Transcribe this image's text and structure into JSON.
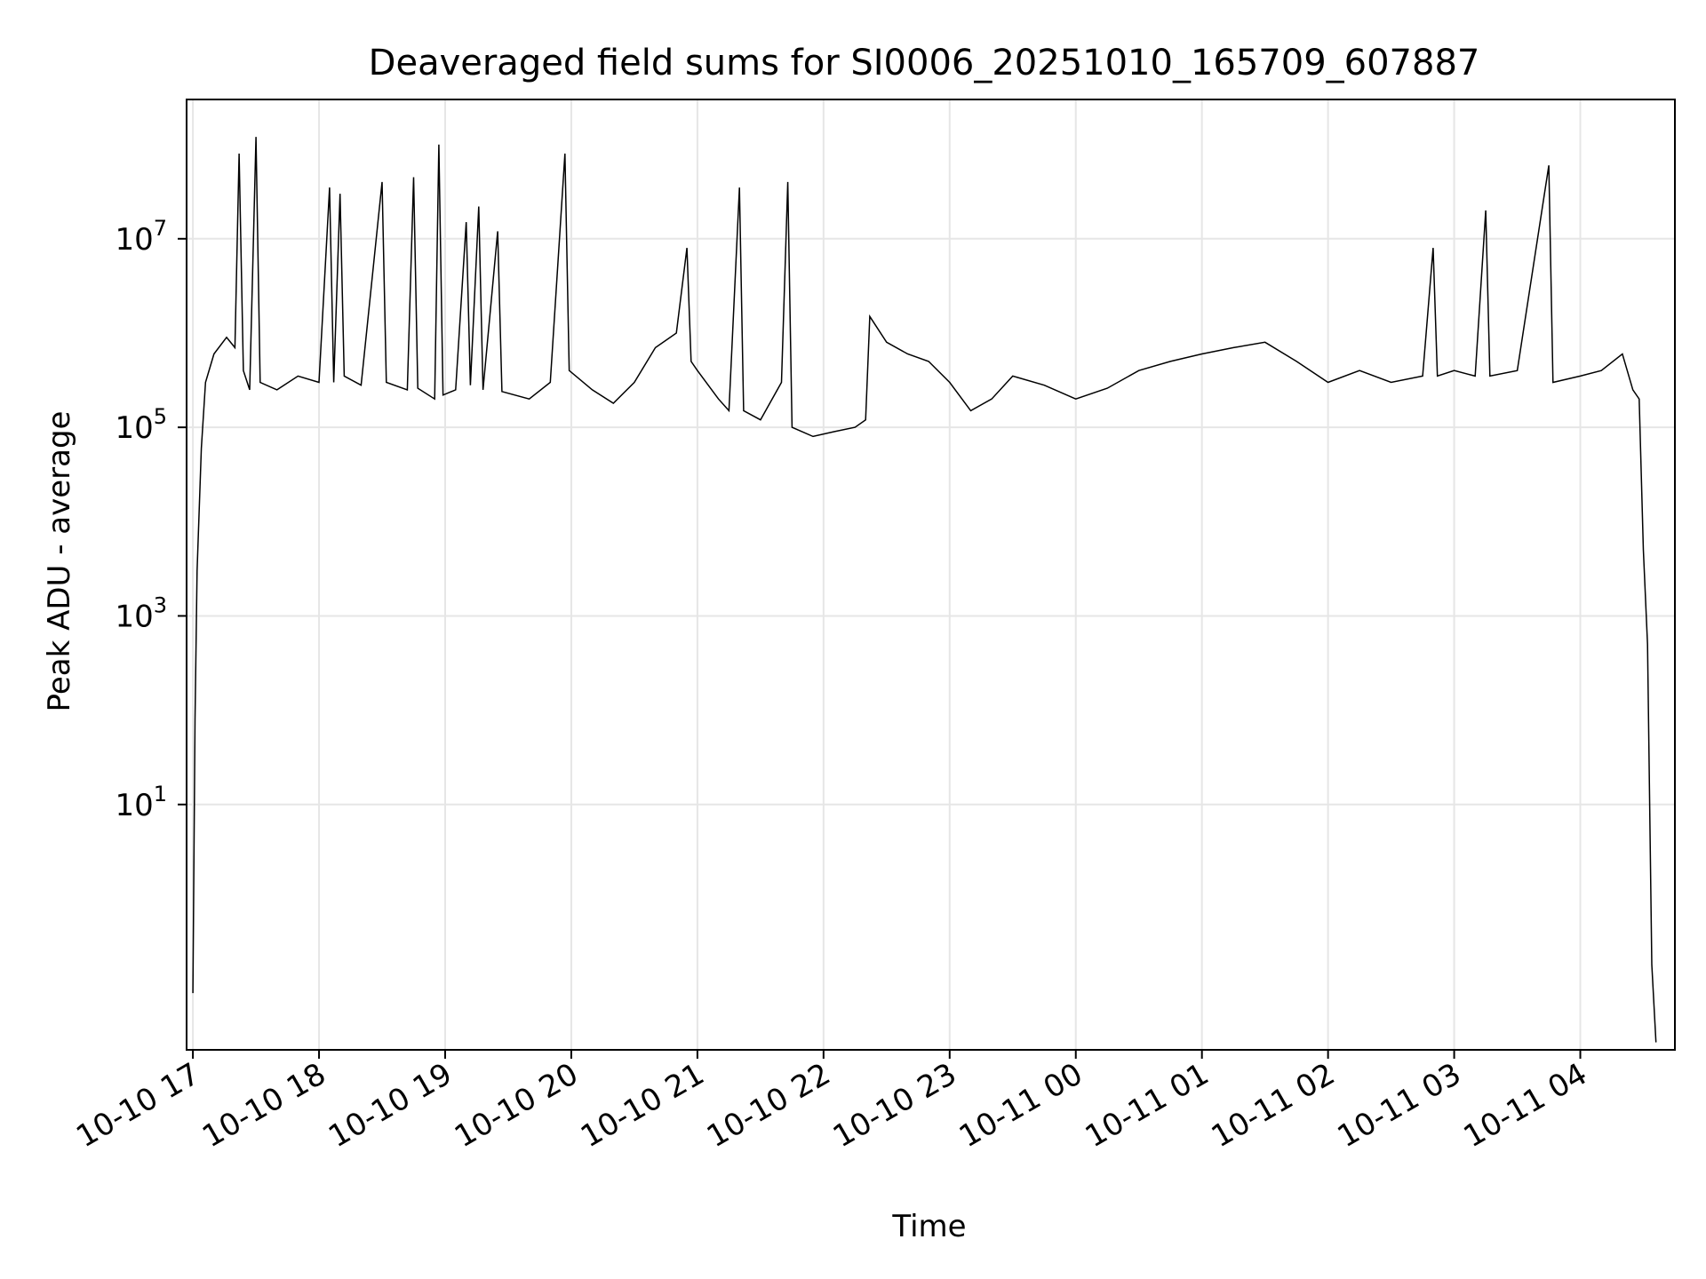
{
  "chart_data": {
    "type": "line",
    "title": "Deaveraged field sums for SI0006_20251010_165709_607887",
    "xlabel": "Time",
    "ylabel": "Peak ADU - average",
    "yscale": "log",
    "grid": true,
    "x_tick_labels": [
      "10-10 17",
      "10-10 18",
      "10-10 19",
      "10-10 20",
      "10-10 21",
      "10-10 22",
      "10-10 23",
      "10-11 00",
      "10-11 01",
      "10-11 02",
      "10-11 03",
      "10-11 04"
    ],
    "x_range": [
      "2025-10-10 16:57",
      "2025-10-11 04:45"
    ],
    "y_tick_labels": [
      {
        "base": "10",
        "exp": "1",
        "value": 10
      },
      {
        "base": "10",
        "exp": "3",
        "value": 1000
      },
      {
        "base": "10",
        "exp": "5",
        "value": 100000
      },
      {
        "base": "10",
        "exp": "7",
        "value": 10000000
      }
    ],
    "ylim": [
      0.025,
      300000000
    ],
    "series": [
      {
        "color": "#000000",
        "points": [
          [
            "2025-10-10 17:00",
            0.1
          ],
          [
            "2025-10-10 17:01",
            80
          ],
          [
            "2025-10-10 17:02",
            3000
          ],
          [
            "2025-10-10 17:04",
            60000
          ],
          [
            "2025-10-10 17:06",
            300000
          ],
          [
            "2025-10-10 17:10",
            600000
          ],
          [
            "2025-10-10 17:16",
            900000
          ],
          [
            "2025-10-10 17:20",
            700000
          ],
          [
            "2025-10-10 17:22",
            80000000
          ],
          [
            "2025-10-10 17:24",
            400000
          ],
          [
            "2025-10-10 17:27",
            250000
          ],
          [
            "2025-10-10 17:30",
            120000000
          ],
          [
            "2025-10-10 17:32",
            300000
          ],
          [
            "2025-10-10 17:40",
            250000
          ],
          [
            "2025-10-10 17:50",
            350000
          ],
          [
            "2025-10-10 18:00",
            300000
          ],
          [
            "2025-10-10 18:05",
            35000000
          ],
          [
            "2025-10-10 18:07",
            300000
          ],
          [
            "2025-10-10 18:10",
            30000000
          ],
          [
            "2025-10-10 18:12",
            350000
          ],
          [
            "2025-10-10 18:20",
            280000
          ],
          [
            "2025-10-10 18:30",
            40000000
          ],
          [
            "2025-10-10 18:32",
            300000
          ],
          [
            "2025-10-10 18:42",
            250000
          ],
          [
            "2025-10-10 18:45",
            45000000
          ],
          [
            "2025-10-10 18:47",
            260000
          ],
          [
            "2025-10-10 18:55",
            200000
          ],
          [
            "2025-10-10 18:57",
            100000000
          ],
          [
            "2025-10-10 18:59",
            220000
          ],
          [
            "2025-10-10 19:05",
            250000
          ],
          [
            "2025-10-10 19:10",
            15000000
          ],
          [
            "2025-10-10 19:12",
            280000
          ],
          [
            "2025-10-10 19:16",
            22000000
          ],
          [
            "2025-10-10 19:18",
            250000
          ],
          [
            "2025-10-10 19:25",
            12000000
          ],
          [
            "2025-10-10 19:27",
            240000
          ],
          [
            "2025-10-10 19:40",
            200000
          ],
          [
            "2025-10-10 19:50",
            300000
          ],
          [
            "2025-10-10 19:57",
            80000000
          ],
          [
            "2025-10-10 19:59",
            400000
          ],
          [
            "2025-10-10 20:10",
            250000
          ],
          [
            "2025-10-10 20:20",
            180000
          ],
          [
            "2025-10-10 20:30",
            300000
          ],
          [
            "2025-10-10 20:40",
            700000
          ],
          [
            "2025-10-10 20:50",
            1000000
          ],
          [
            "2025-10-10 20:55",
            8000000
          ],
          [
            "2025-10-10 20:57",
            500000
          ],
          [
            "2025-10-10 21:00",
            400000
          ],
          [
            "2025-10-10 21:10",
            200000
          ],
          [
            "2025-10-10 21:15",
            150000
          ],
          [
            "2025-10-10 21:20",
            35000000
          ],
          [
            "2025-10-10 21:22",
            150000
          ],
          [
            "2025-10-10 21:30",
            120000
          ],
          [
            "2025-10-10 21:40",
            300000
          ],
          [
            "2025-10-10 21:43",
            40000000
          ],
          [
            "2025-10-10 21:45",
            100000
          ],
          [
            "2025-10-10 21:55",
            80000
          ],
          [
            "2025-10-10 22:05",
            90000
          ],
          [
            "2025-10-10 22:15",
            100000
          ],
          [
            "2025-10-10 22:20",
            120000
          ],
          [
            "2025-10-10 22:22",
            1500000
          ],
          [
            "2025-10-10 22:30",
            800000
          ],
          [
            "2025-10-10 22:40",
            600000
          ],
          [
            "2025-10-10 22:50",
            500000
          ],
          [
            "2025-10-10 23:00",
            300000
          ],
          [
            "2025-10-10 23:10",
            150000
          ],
          [
            "2025-10-10 23:20",
            200000
          ],
          [
            "2025-10-10 23:30",
            350000
          ],
          [
            "2025-10-10 23:45",
            280000
          ],
          [
            "2025-10-11 00:00",
            200000
          ],
          [
            "2025-10-11 00:15",
            260000
          ],
          [
            "2025-10-11 00:30",
            400000
          ],
          [
            "2025-10-11 00:45",
            500000
          ],
          [
            "2025-10-11 01:00",
            600000
          ],
          [
            "2025-10-11 01:15",
            700000
          ],
          [
            "2025-10-11 01:30",
            800000
          ],
          [
            "2025-10-11 01:45",
            500000
          ],
          [
            "2025-10-11 02:00",
            300000
          ],
          [
            "2025-10-11 02:15",
            400000
          ],
          [
            "2025-10-11 02:30",
            300000
          ],
          [
            "2025-10-11 02:45",
            350000
          ],
          [
            "2025-10-11 02:50",
            8000000
          ],
          [
            "2025-10-11 02:52",
            350000
          ],
          [
            "2025-10-11 03:00",
            400000
          ],
          [
            "2025-10-11 03:10",
            350000
          ],
          [
            "2025-10-11 03:15",
            20000000
          ],
          [
            "2025-10-11 03:17",
            350000
          ],
          [
            "2025-10-11 03:30",
            400000
          ],
          [
            "2025-10-11 03:45",
            60000000
          ],
          [
            "2025-10-11 03:47",
            300000
          ],
          [
            "2025-10-11 04:00",
            350000
          ],
          [
            "2025-10-11 04:10",
            400000
          ],
          [
            "2025-10-11 04:20",
            600000
          ],
          [
            "2025-10-11 04:25",
            250000
          ],
          [
            "2025-10-11 04:28",
            200000
          ],
          [
            "2025-10-11 04:30",
            5000
          ],
          [
            "2025-10-11 04:32",
            500
          ],
          [
            "2025-10-11 04:34",
            0.2
          ],
          [
            "2025-10-11 04:36",
            0.03
          ]
        ]
      }
    ]
  }
}
